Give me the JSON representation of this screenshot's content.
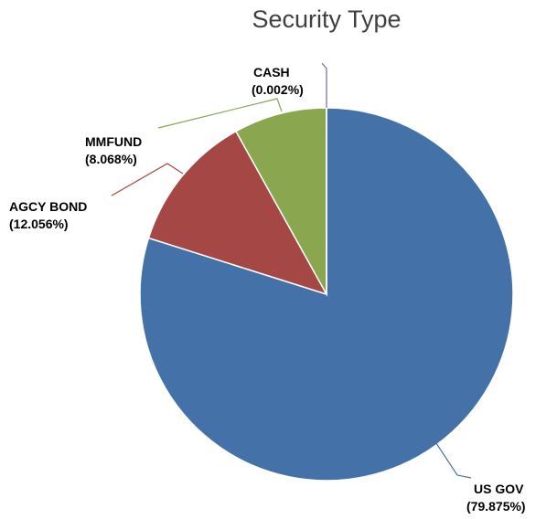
{
  "chart_data": {
    "type": "pie",
    "title": "Security Type",
    "slices": [
      {
        "name": "US GOV",
        "percent_label": "(79.875%)",
        "value": 79.875,
        "color": "#4472A8"
      },
      {
        "name": "AGCY BOND",
        "percent_label": "(12.056%)",
        "value": 12.056,
        "color": "#A54745"
      },
      {
        "name": "MMFUND",
        "percent_label": "(8.068%)",
        "value": 8.068,
        "color": "#8AA64F"
      },
      {
        "name": "CASH",
        "percent_label": "(0.002%)",
        "value": 0.002,
        "color": "#7B68A8"
      }
    ],
    "leader_colors": {
      "US GOV": "#4472A8",
      "AGCY BOND": "#A54745",
      "MMFUND": "#8AA64F",
      "CASH": "#7B68A8"
    },
    "legend": "none",
    "start_angle": "12 o'clock, clockwise"
  }
}
